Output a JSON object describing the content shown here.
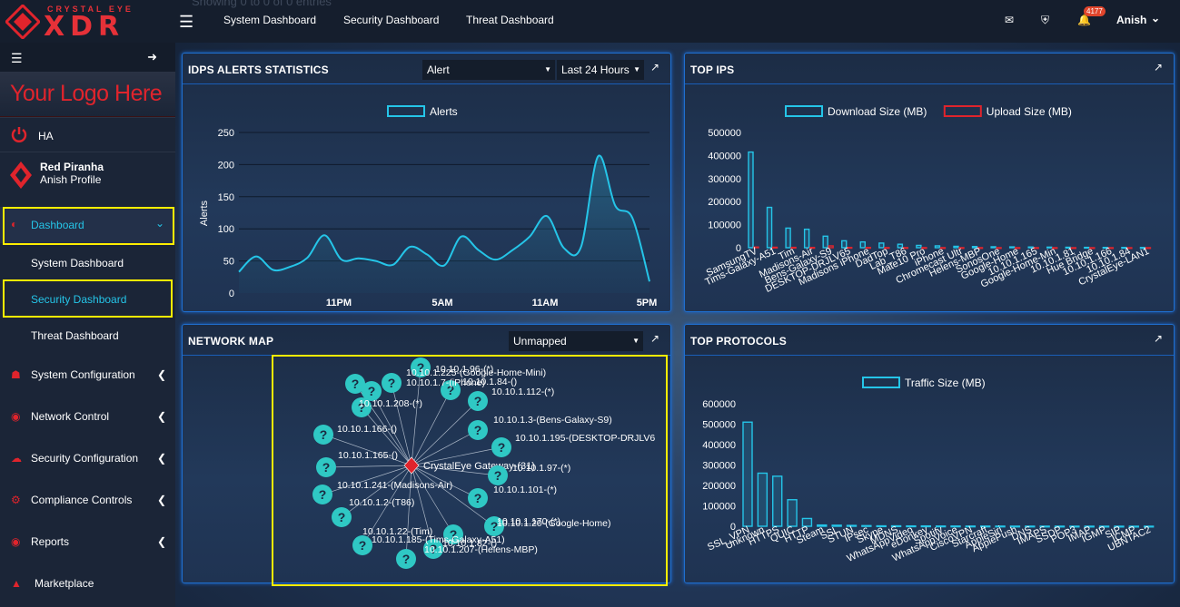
{
  "brand": {
    "tagline": "CRYSTAL EYE",
    "name": "XDR"
  },
  "sidebar": {
    "logo_text": "Your Logo Here",
    "ha_label": "HA",
    "profile_name": "Red Piranha",
    "profile_sub": "Anish Profile",
    "items": [
      {
        "label": "Dashboard",
        "icon": "dashboard-icon"
      },
      {
        "label": "System Dashboard"
      },
      {
        "label": "Security Dashboard"
      },
      {
        "label": "Threat Dashboard"
      },
      {
        "label": "System Configuration",
        "icon": "home-icon"
      },
      {
        "label": "Network Control",
        "icon": "globe-icon"
      },
      {
        "label": "Security Configuration",
        "icon": "cloud-icon"
      },
      {
        "label": "Compliance Controls",
        "icon": "gear-icon"
      },
      {
        "label": "Reports",
        "icon": "globe-icon"
      },
      {
        "label": "Marketplace",
        "icon": "cart-icon"
      }
    ]
  },
  "topbar": {
    "faint_text": "Showing 0 to 0 of 0 entries",
    "tabs": [
      "System Dashboard",
      "Security Dashboard",
      "Threat Dashboard"
    ],
    "notification_count": "4177",
    "user_name": "Anish"
  },
  "idps": {
    "title": "IDPS ALERTS STATISTICS",
    "filter_value": "Alert",
    "range_value": "Last 24 Hours"
  },
  "top_ips": {
    "title": "TOP IPS"
  },
  "network_map": {
    "title": "NETWORK MAP",
    "filter_value": "Unmapped",
    "center_label": "CrystalEye Gateway-(31)",
    "nodes": [
      "10.10.1.96-(*)",
      "10.10.1.225-(Google-Home-Mini)",
      "10.10.1.7-(iPhone)",
      "10.10.1.84-()",
      "10.10.1.112-(*)",
      "10.10.1.3-(Bens-Galaxy-S9)",
      "10.10.1.195-(DESKTOP-DRJLV6",
      "10.10.1.97-(*)",
      "10.10.1.101-(*)",
      "10.10.1.170-(*)",
      "10.10.1.20-(Google-Home)",
      "10.10.1.82-()",
      "10.10.1.207-(Helens-MBP)",
      "10.10.1.185-(Tims-Galaxy-A51)",
      "10.10.1.22-(Tim)",
      "10.10.1.2-(T86)",
      "10.10.1.241-(Madisons-Air)",
      "10.10.1.165-()",
      "10.10.1.166-()",
      "10.10.1.208-(*)"
    ]
  },
  "top_protocols": {
    "title": "TOP PROTOCOLS"
  },
  "colors": {
    "accent": "#25c5e8",
    "upload": "#e0242c",
    "highlight": "#ffee00",
    "panel_border": "#1f6fcf"
  },
  "chart_data": [
    {
      "type": "line",
      "id": "idps-alerts",
      "legend": [
        "Alerts"
      ],
      "ylabel": "Alerts",
      "ylim": [
        0,
        250
      ],
      "yticks": [
        "250",
        "200",
        "150",
        "100",
        "50",
        "0"
      ],
      "xticks": [
        "11PM",
        "5AM",
        "11AM",
        "5PM"
      ],
      "series": [
        {
          "name": "Alerts",
          "values": [
            33,
            57,
            36,
            41,
            55,
            90,
            52,
            54,
            50,
            44,
            72,
            60,
            43,
            88,
            67,
            52,
            67,
            88,
            120,
            70,
            72,
            213,
            136,
            117,
            18
          ]
        }
      ]
    },
    {
      "type": "bar",
      "id": "top-ips",
      "legend": [
        "Download Size (MB)",
        "Upload Size (MB)"
      ],
      "ylim": [
        0,
        500000
      ],
      "yticks": [
        "500000",
        "400000",
        "300000",
        "200000",
        "100000",
        "0"
      ],
      "categories": [
        "SamsungTV",
        "Tims-Galaxy-A51",
        "Tim",
        "Madisons-Air",
        "Bens-Galaxy-S9",
        "DESKTOP-DRJLV65",
        "Madisons iPhone",
        "DadTop",
        "Lab_T86",
        "Mate10 Pro",
        "iPhone",
        "Chromecast Ultr",
        "Helens-MBP",
        "SonosOne",
        "Google-Home",
        "10.10.1.165",
        "Google-Home-Min",
        "10.10.1.81",
        "Hue Bridge",
        "10.10.1.166",
        "10.10.1.84",
        "CrystalEye-LAN1"
      ],
      "series": [
        {
          "name": "Download Size (MB)",
          "values": [
            415000,
            175000,
            85000,
            80000,
            50000,
            30000,
            25000,
            20000,
            15000,
            10000,
            8000,
            6000,
            5000,
            4000,
            3500,
            3000,
            2500,
            2000,
            1500,
            1200,
            1000,
            800
          ]
        },
        {
          "name": "Upload Size (MB)",
          "values": [
            3000,
            2000,
            1500,
            1000,
            8000,
            1000,
            1000,
            500,
            500,
            500,
            300,
            300,
            300,
            200,
            200,
            200,
            200,
            100,
            100,
            100,
            100,
            100
          ]
        }
      ]
    },
    {
      "type": "bar",
      "id": "top-protocols",
      "legend": [
        "Traffic Size (MB)"
      ],
      "ylim": [
        0,
        600000
      ],
      "yticks": [
        "600000",
        "500000",
        "400000",
        "300000",
        "200000",
        "100000",
        "0"
      ],
      "categories": [
        "SSL_VPN",
        "Unknown",
        "HTTPS",
        "QUIC",
        "HTTP",
        "Steam",
        "SSL",
        "STUN",
        "IPsec",
        "Skype",
        "MDNS",
        "WhatsAppVideo",
        "eDonkey",
        "Spotify",
        "WhatsAppVoice",
        "CiscoVPN",
        "Starcraft",
        "AppleSiri",
        "ApplePush",
        "DNS",
        "IMAPS",
        "SSDP",
        "POP3",
        "IMAP",
        "IGMP",
        "SIP",
        "ICMP",
        "UBNTAC2"
      ],
      "series": [
        {
          "name": "Traffic Size (MB)",
          "values": [
            510000,
            260000,
            245000,
            130000,
            38000,
            6000,
            5000,
            4000,
            3000,
            2000,
            2000,
            1500,
            1500,
            1000,
            1000,
            800,
            700,
            600,
            500,
            400,
            400,
            300,
            300,
            200,
            200,
            100,
            100,
            100
          ]
        }
      ]
    }
  ]
}
